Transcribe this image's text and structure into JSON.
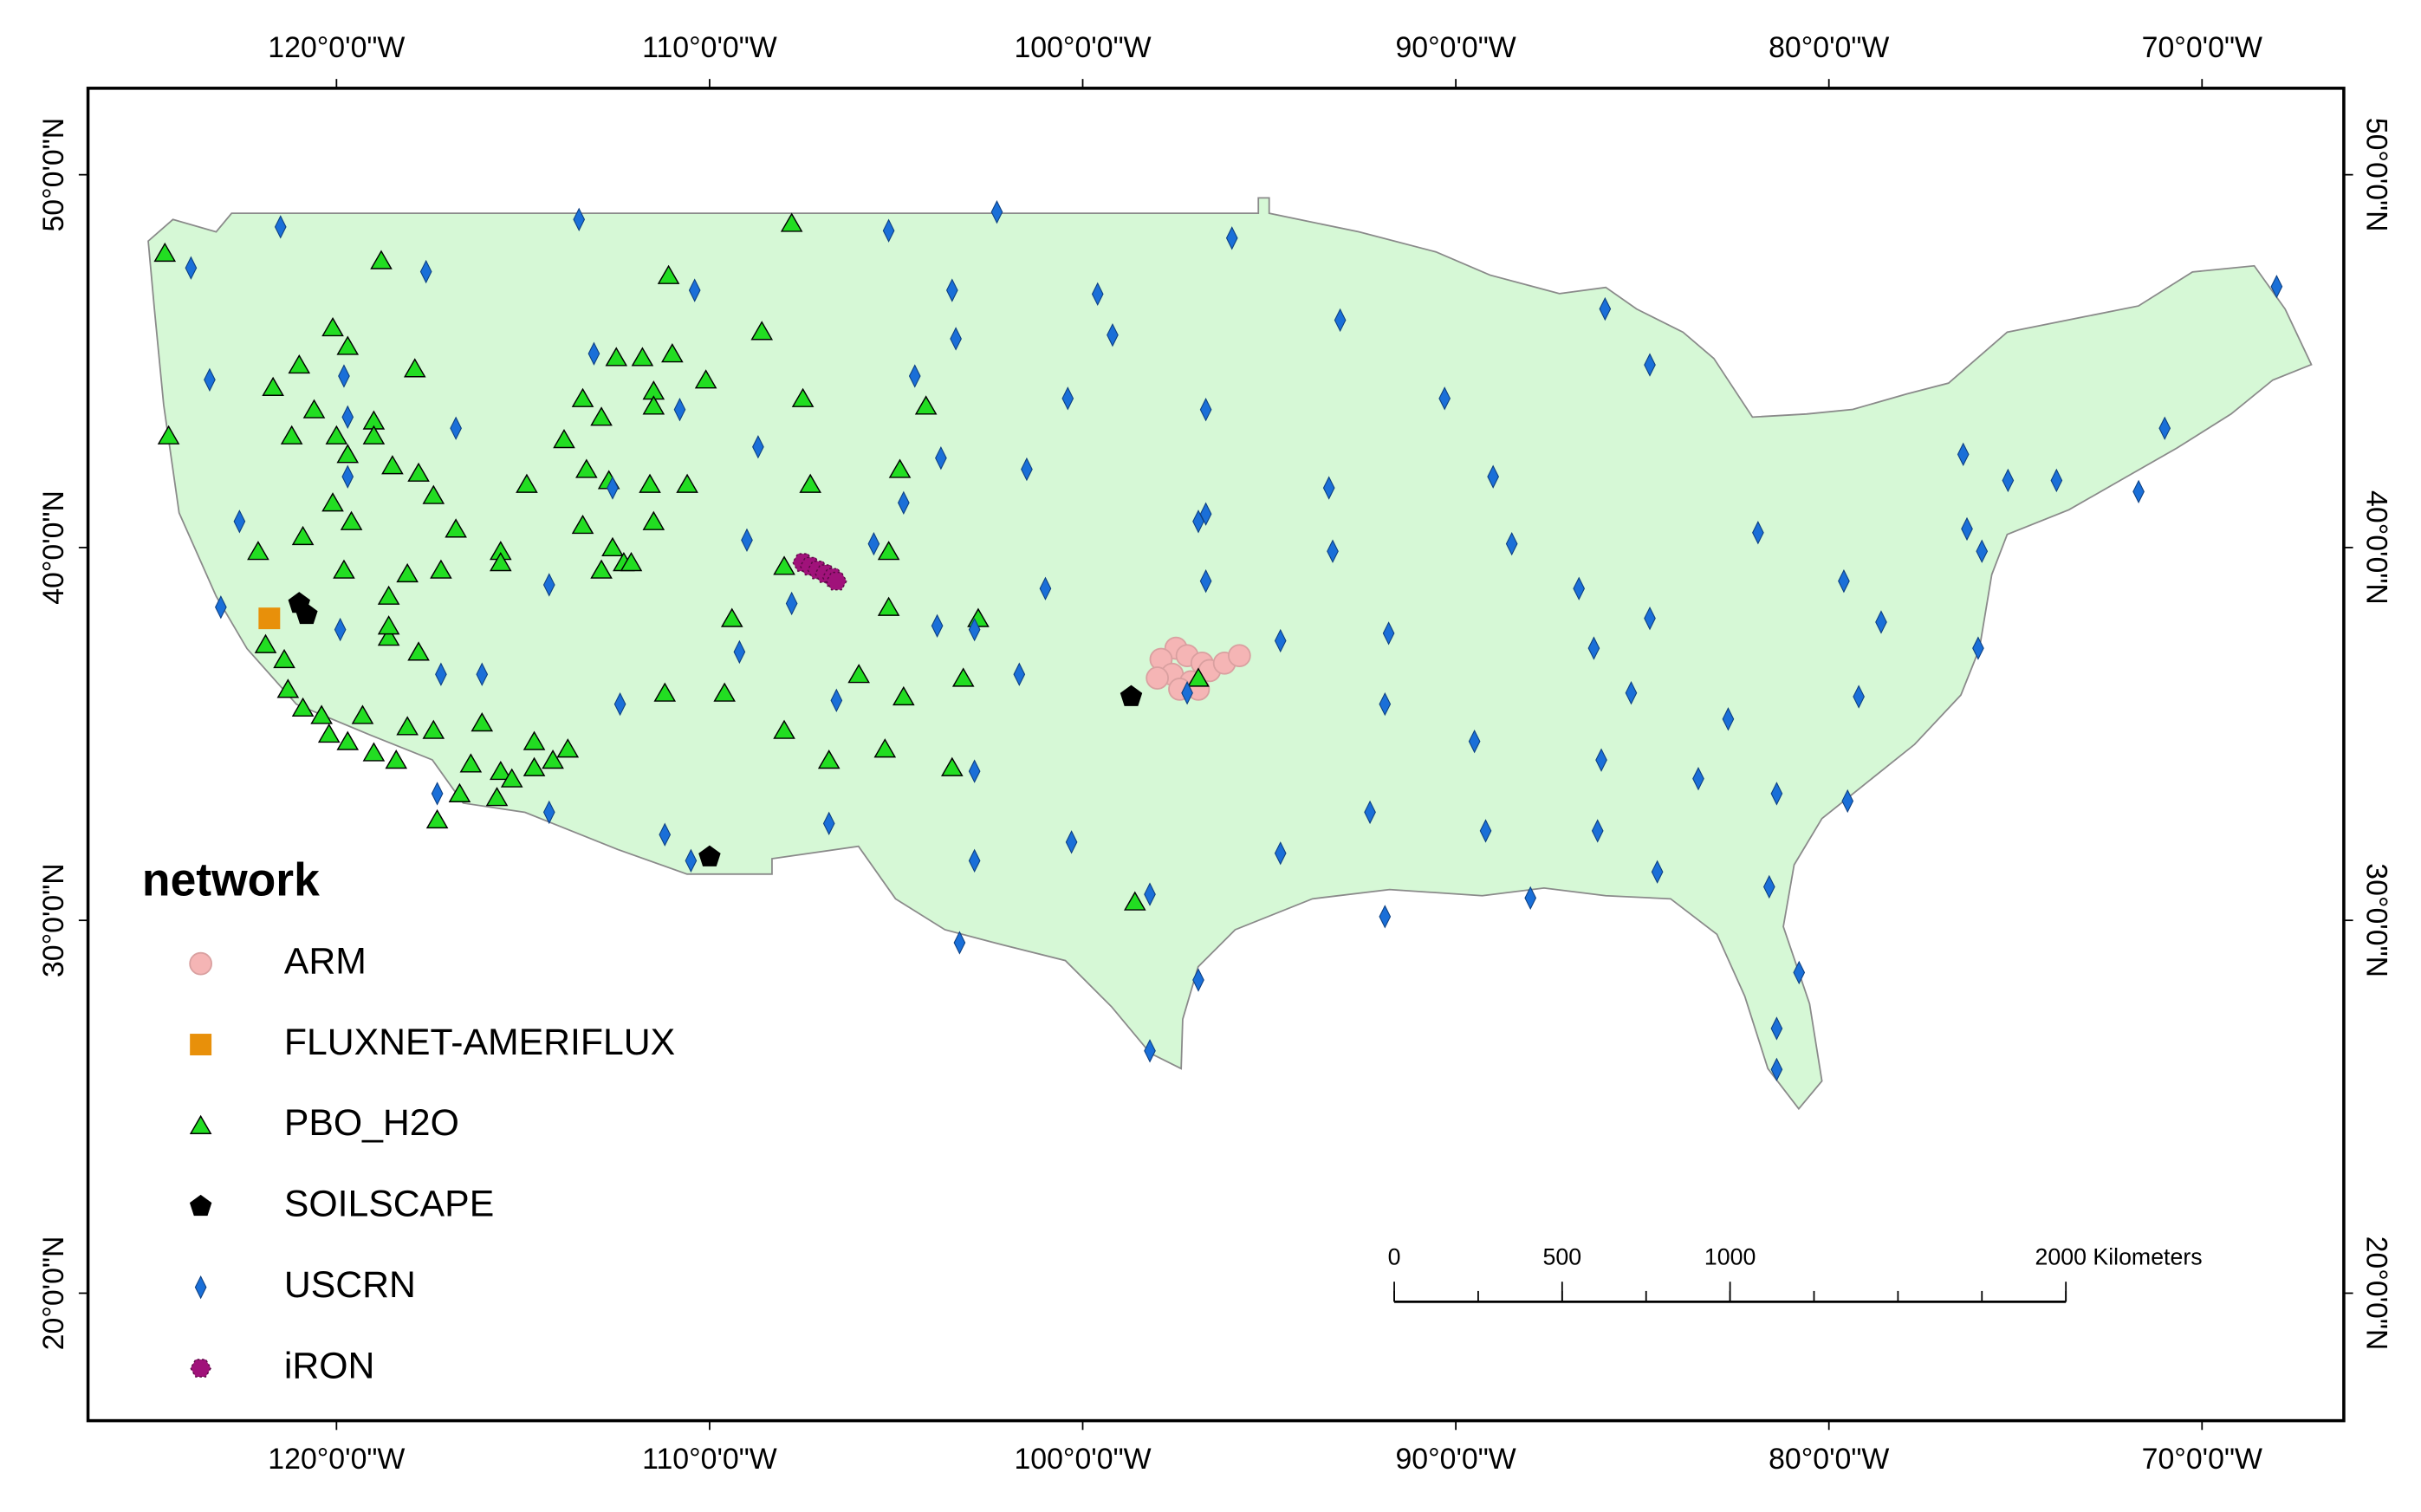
{
  "map": {
    "lonlim": [
      -126.66,
      -66.2
    ],
    "latlim": [
      16.58,
      52.32
    ],
    "xticks": [
      {
        "value": -120,
        "label": "120°0'0\"W"
      },
      {
        "value": -110,
        "label": "110°0'0\"W"
      },
      {
        "value": -100,
        "label": "100°0'0\"W"
      },
      {
        "value": -90,
        "label": "90°0'0\"W"
      },
      {
        "value": -80,
        "label": "80°0'0\"W"
      },
      {
        "value": -70,
        "label": "70°0'0\"W"
      }
    ],
    "yticks": [
      {
        "value": 20,
        "label": "20°0'0\"N"
      },
      {
        "value": 30,
        "label": "30°0'0\"N"
      },
      {
        "value": 40,
        "label": "40°0'0\"N"
      },
      {
        "value": 50,
        "label": "50°0'0\"N"
      }
    ],
    "legend_title": "network",
    "networks": [
      {
        "name": "ARM",
        "color": "#f5b5b5",
        "shape": "circle",
        "lon": [
          -97.5,
          -97.2,
          -96.8,
          -97.9,
          -97.6,
          -97.1,
          -96.6,
          -96.2,
          -95.8,
          -97.4,
          -98.0,
          -96.9
        ],
        "lat": [
          37.3,
          37.1,
          36.9,
          37.0,
          36.6,
          36.4,
          36.7,
          36.9,
          37.1,
          36.2,
          36.5,
          36.2
        ]
      },
      {
        "name": "FLUXNET-AMERIFLUX",
        "color": "#e8900a",
        "shape": "square",
        "lon": [
          -121.8
        ],
        "lat": [
          38.1
        ]
      },
      {
        "name": "PBO_H2O",
        "color": "#22dd22",
        "shape": "triangle",
        "lon": [
          -124.6,
          -124.5,
          -118.8,
          -120.1,
          -119.7,
          -121.0,
          -121.7,
          -120.6,
          -121.2,
          -120.0,
          -119.0,
          -117.9,
          -119.0,
          -119.7,
          -118.5,
          -117.8,
          -117.4,
          -120.1,
          -119.6,
          -120.9,
          -122.1,
          -119.8,
          -118.1,
          -118.6,
          -117.2,
          -116.8,
          -115.6,
          -115.6,
          -114.9,
          -113.3,
          -113.9,
          -113.4,
          -112.9,
          -112.5,
          -111.8,
          -111.0,
          -111.1,
          -111.5,
          -111.5,
          -110.1,
          -108.6,
          -107.8,
          -107.5,
          -112.7,
          -111.6,
          -110.6,
          -111.5,
          -113.4,
          -112.6,
          -112.3,
          -112.9,
          -112.1,
          -107.3,
          -104.9,
          -105.2,
          -104.2,
          -108.0,
          -109.4,
          -105.2,
          -102.8,
          -111.2,
          -109.6,
          -106.0,
          -104.8,
          -103.2,
          -108.0,
          -106.8,
          -105.3,
          -103.5,
          -98.6,
          -96.9,
          -121.9,
          -121.4,
          -121.3,
          -120.9,
          -120.4,
          -120.2,
          -119.3,
          -119.7,
          -119.0,
          -118.4,
          -118.1,
          -117.4,
          -116.4,
          -116.1,
          -116.7,
          -117.3,
          -115.7,
          -115.6,
          -115.3,
          -114.7,
          -114.2,
          -113.8,
          -114.7,
          -118.6,
          -118.6,
          -117.8
        ],
        "lat": [
          47.9,
          43.0,
          47.7,
          45.9,
          45.4,
          44.9,
          44.3,
          43.7,
          43.0,
          43.0,
          43.4,
          44.8,
          43.0,
          42.5,
          42.2,
          42.0,
          41.4,
          41.2,
          40.7,
          40.3,
          39.9,
          39.4,
          39.3,
          38.7,
          39.4,
          40.5,
          39.9,
          39.6,
          41.7,
          42.1,
          42.9,
          44.0,
          43.5,
          45.1,
          45.1,
          45.2,
          47.3,
          44.2,
          43.8,
          44.5,
          45.8,
          48.7,
          44.0,
          41.8,
          41.7,
          41.7,
          40.7,
          40.6,
          40.0,
          39.6,
          39.4,
          39.6,
          41.7,
          42.1,
          39.9,
          43.8,
          39.5,
          38.1,
          38.4,
          38.1,
          36.1,
          36.1,
          36.6,
          36.0,
          36.5,
          35.1,
          34.3,
          34.6,
          34.1,
          30.5,
          36.5,
          37.4,
          37.0,
          36.2,
          35.7,
          35.5,
          35.0,
          35.5,
          34.8,
          34.5,
          34.3,
          35.2,
          35.1,
          34.2,
          35.3,
          33.4,
          32.7,
          33.3,
          34.0,
          33.8,
          34.1,
          34.3,
          34.6,
          34.8,
          37.6,
          37.9,
          37.2
        ]
      },
      {
        "name": "SOILSCAPE",
        "color": "#000000",
        "shape": "pentagon",
        "lon": [
          -121.0,
          -120.8,
          -98.7,
          -110.0
        ],
        "lat": [
          38.5,
          38.2,
          36.0,
          31.7
        ]
      },
      {
        "name": "USCRN",
        "color": "#1a6fd8",
        "shape": "diamond",
        "lon": [
          -121.5,
          -123.9,
          -117.6,
          -113.5,
          -105.2,
          -102.3,
          -96.0,
          -110.4,
          -103.5,
          -99.6,
          -123.4,
          -119.8,
          -116.8,
          -113.1,
          -110.8,
          -104.5,
          -103.4,
          -99.2,
          -96.7,
          -100.4,
          -93.1,
          -90.3,
          -86.0,
          -84.8,
          -119.7,
          -119.7,
          -122.6,
          -108.7,
          -112.6,
          -103.8,
          -101.5,
          -104.8,
          -96.9,
          -96.7,
          -93.4,
          -89.0,
          -88.5,
          -93.3,
          -81.9,
          -76.3,
          -75.2,
          -73.9,
          -71.0,
          -76.4,
          -68.0,
          -71.7,
          -109.0,
          -105.6,
          -123.1,
          -114.3,
          -109.2,
          -107.8,
          -101.0,
          -96.7,
          -86.7,
          -79.6,
          -78.6,
          -84.8,
          -86.3,
          -76.0,
          -91.8,
          -94.7,
          -103.9,
          -102.9,
          -119.9,
          -117.2,
          -116.1,
          -112.4,
          -106.6,
          -101.7,
          -91.9,
          -89.5,
          -85.3,
          -86.1,
          -82.7,
          -79.2,
          -83.5,
          -81.4,
          -79.5,
          -117.3,
          -114.3,
          -111.2,
          -110.5,
          -106.8,
          -102.9,
          -102.9,
          -100.3,
          -94.7,
          -92.3,
          -89.2,
          -86.2,
          -84.6,
          -91.9,
          -88.0,
          -81.6,
          -98.2,
          -96.9,
          -98.2,
          -103.3,
          -80.8,
          -81.4,
          -81.4,
          -75.9,
          -97.2
        ],
        "lat": [
          48.6,
          47.5,
          47.4,
          48.8,
          48.5,
          49.0,
          48.3,
          46.9,
          46.9,
          46.8,
          44.5,
          44.6,
          43.2,
          45.2,
          43.7,
          44.6,
          45.6,
          45.7,
          43.7,
          44.0,
          46.1,
          44.0,
          46.4,
          44.9,
          43.5,
          41.9,
          40.7,
          42.7,
          41.6,
          42.4,
          42.1,
          41.2,
          40.7,
          40.9,
          41.6,
          41.9,
          40.1,
          39.9,
          40.4,
          40.5,
          41.8,
          41.8,
          43.2,
          42.5,
          47.0,
          41.5,
          40.2,
          40.1,
          38.4,
          39.0,
          37.2,
          38.5,
          38.9,
          39.1,
          38.9,
          39.1,
          38.0,
          38.1,
          37.3,
          37.3,
          37.7,
          37.5,
          37.9,
          37.8,
          37.8,
          36.6,
          36.6,
          35.8,
          35.9,
          36.6,
          35.8,
          34.8,
          36.1,
          34.3,
          35.4,
          36.0,
          33.8,
          33.4,
          33.2,
          33.4,
          32.9,
          32.3,
          31.6,
          32.6,
          31.6,
          34.0,
          32.1,
          31.8,
          32.9,
          32.4,
          32.4,
          31.3,
          30.1,
          30.6,
          30.9,
          30.7,
          28.4,
          26.5,
          29.4,
          28.6,
          27.1,
          26.0,
          39.9,
          36.1
        ]
      },
      {
        "name": "iRON",
        "color": "#a0127a",
        "shape": "hexagon",
        "lon": [
          -107.5,
          -107.3,
          -107.1,
          -106.9,
          -106.7,
          -106.6
        ],
        "lat": [
          39.6,
          39.5,
          39.4,
          39.3,
          39.2,
          39.1
        ]
      }
    ],
    "scale_bar": {
      "ticks": [
        0,
        500,
        1000,
        {
          "value": 2000,
          "label": "2000 Kilometers"
        }
      ]
    }
  }
}
